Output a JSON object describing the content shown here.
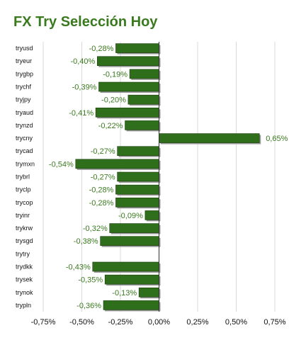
{
  "chart_data": {
    "type": "bar",
    "orientation": "horizontal",
    "title": "FX Try Selección Hoy",
    "categories": [
      "tryusd",
      "tryeur",
      "trygbp",
      "trychf",
      "tryjpy",
      "tryaud",
      "trynzd",
      "trycny",
      "trycad",
      "trymxn",
      "trybrl",
      "tryclp",
      "trycop",
      "tryinr",
      "trykrw",
      "trysgd",
      "trytry",
      "trydkk",
      "trysek",
      "trynok",
      "trypln"
    ],
    "values": [
      -0.28,
      -0.4,
      -0.19,
      -0.39,
      -0.2,
      -0.41,
      -0.22,
      0.65,
      -0.27,
      -0.54,
      -0.27,
      -0.28,
      -0.28,
      -0.09,
      -0.32,
      -0.38,
      null,
      -0.43,
      -0.35,
      -0.13,
      -0.36
    ],
    "value_labels": [
      "-0,28%",
      "-0,40%",
      "-0,19%",
      "-0,39%",
      "-0,20%",
      "-0,41%",
      "-0,22%",
      "0,65%",
      "-0,27%",
      "-0,54%",
      "-0,27%",
      "-0,28%",
      "-0,28%",
      "-0,09%",
      "-0,32%",
      "-0,38%",
      "",
      "-0,43%",
      "-0,35%",
      "-0,13%",
      "-0,36%"
    ],
    "xlim": [
      -0.75,
      0.75
    ],
    "ticks": [
      -0.75,
      -0.5,
      -0.25,
      0,
      0.25,
      0.5,
      0.75
    ],
    "tick_labels": [
      "-0,75%",
      "-0,50%",
      "-0,25%",
      "0,00%",
      "0,25%",
      "0,50%",
      "0,75%"
    ],
    "grid": true,
    "xlabel": "",
    "ylabel": ""
  },
  "colors": {
    "bar_fill": "#2f6e1a",
    "bar_edge": "#1a3d0d",
    "bar_shadow": "#9a9a9a",
    "value_text": "#3a7a1f",
    "grid": "#d9d9d9",
    "axis": "#333333"
  }
}
